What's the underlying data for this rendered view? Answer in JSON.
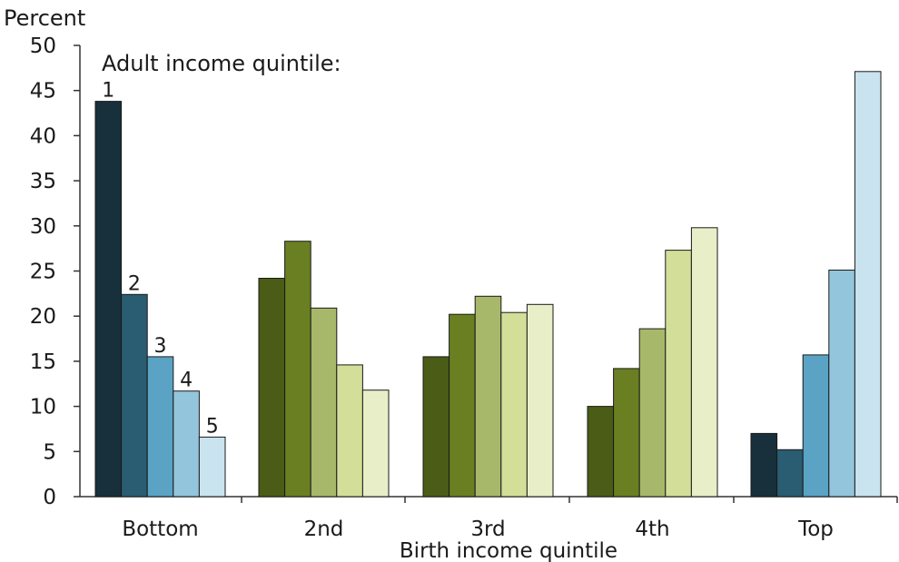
{
  "chart_data": {
    "type": "bar",
    "ylabel": "Percent",
    "xlabel": "Birth income quintile",
    "legend_title": "Adult income quintile:",
    "ylim": [
      0,
      50
    ],
    "yticks": [
      0,
      5,
      10,
      15,
      20,
      25,
      30,
      35,
      40,
      45,
      50
    ],
    "categories": [
      "Bottom",
      "2nd",
      "3rd",
      "4th",
      "Top"
    ],
    "series_labels": [
      "1",
      "2",
      "3",
      "4",
      "5"
    ],
    "grid": false,
    "values": [
      [
        43.8,
        22.4,
        15.5,
        11.7,
        6.6
      ],
      [
        24.2,
        28.3,
        20.9,
        14.6,
        11.8
      ],
      [
        15.5,
        20.2,
        22.2,
        20.4,
        21.3
      ],
      [
        10.0,
        14.2,
        18.6,
        27.3,
        29.8
      ],
      [
        7.0,
        5.2,
        15.7,
        25.1,
        47.1
      ]
    ],
    "colors": [
      [
        "#17303b",
        "#2a5c72",
        "#5aa3c4",
        "#93c5dc",
        "#c9e3ef"
      ],
      [
        "#4a5c16",
        "#6a7f22",
        "#a7b86b",
        "#d3de98",
        "#e8efc8"
      ],
      [
        "#4a5c16",
        "#6a7f22",
        "#a7b86b",
        "#d3de98",
        "#e8efc8"
      ],
      [
        "#4a5c16",
        "#6a7f22",
        "#a7b86b",
        "#d3de98",
        "#e8efc8"
      ],
      [
        "#17303b",
        "#2a5c72",
        "#5aa3c4",
        "#93c5dc",
        "#c9e3ef"
      ]
    ]
  }
}
